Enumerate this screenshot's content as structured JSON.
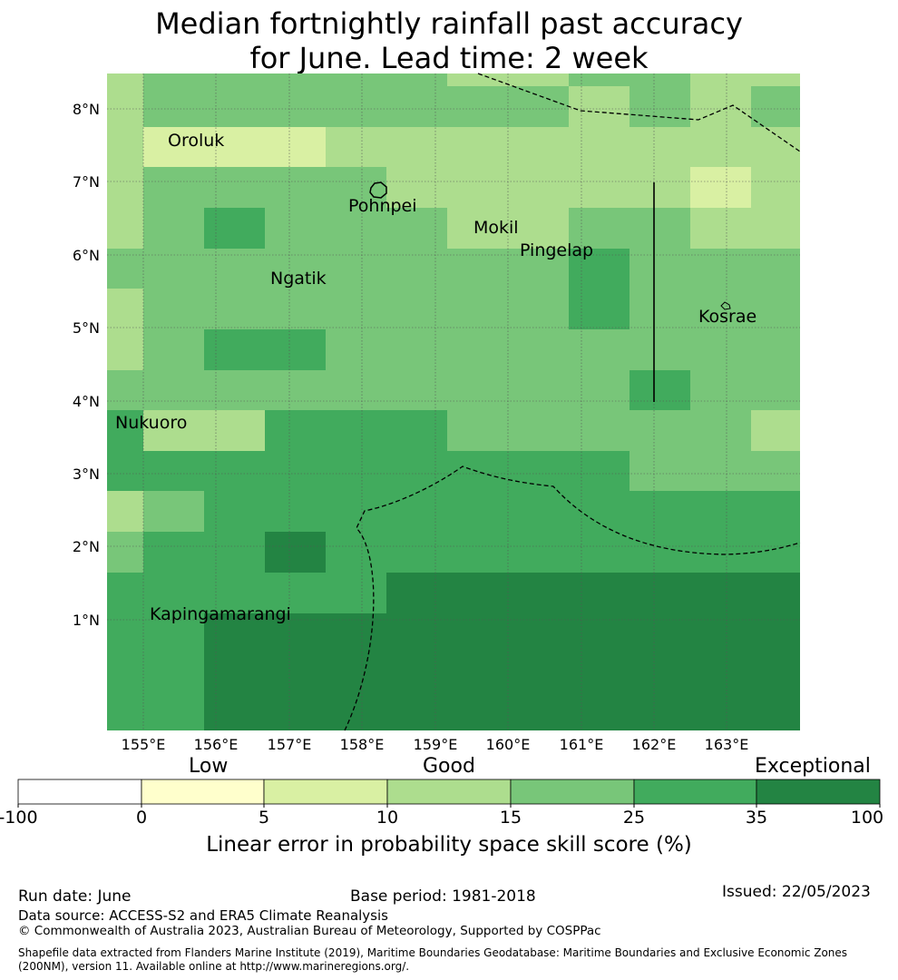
{
  "title_line1": "Median fortnightly rainfall past accuracy",
  "title_line2": "for June. Lead time: 2 week",
  "map": {
    "lon_labels": [
      "155°E",
      "156°E",
      "157°E",
      "158°E",
      "159°E",
      "160°E",
      "161°E",
      "162°E",
      "163°E"
    ],
    "lat_labels": [
      "8°N",
      "7°N",
      "6°N",
      "5°N",
      "4°N",
      "3°N",
      "2°N",
      "1°N"
    ],
    "places": [
      "Oroluk",
      "Pohnpei",
      "Mokil",
      "Pingelap",
      "Ngatik",
      "Kosrae",
      "Nukuoro",
      "Kapingamarangi"
    ]
  },
  "colorbar": {
    "category_labels": [
      "Low",
      "Good",
      "Exceptional"
    ],
    "ticks": [
      "-100",
      "0",
      "5",
      "10",
      "15",
      "25",
      "35",
      "100"
    ],
    "colors": [
      "#ffffff",
      "#ffffcc",
      "#d9f0a3",
      "#addd8e",
      "#78c679",
      "#41ab5d",
      "#238443"
    ],
    "title": "Linear error in probability space skill score (%)"
  },
  "footer": {
    "run_date": "Run date: June",
    "base_period": "Base period: 1981-2018",
    "issued": "Issued: 22/05/2023",
    "data_source": "Data source: ACCESS-S2 and ERA5 Climate Reanalysis",
    "copyright": "© Commonwealth of Australia 2023, Australian Bureau of Meteorology, Supported by COSPPac",
    "shapefile": "Shapefile data extracted from Flanders Marine Institute (2019), Maritime Boundaries Geodatabase: Maritime Boundaries and Exclusive Economic Zones (200NM), version 11. Available online at http://www.marineregions.org/."
  }
}
